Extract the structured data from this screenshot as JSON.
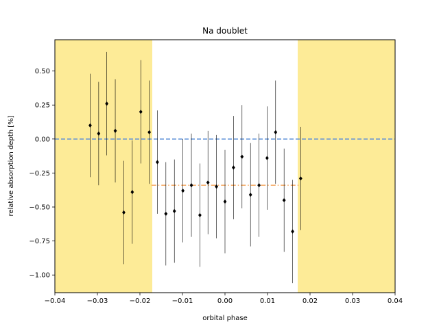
{
  "chart_data": {
    "type": "scatter",
    "title": "Na doublet",
    "xlabel": "orbital phase",
    "ylabel": "relative absorption depth [%]",
    "xlim": [
      -0.04,
      0.04
    ],
    "ylim": [
      -1.13,
      0.73
    ],
    "xticks": [
      -0.04,
      -0.03,
      -0.02,
      -0.01,
      0.0,
      0.01,
      0.02,
      0.03,
      0.04
    ],
    "xtick_labels": [
      "−0.04",
      "−0.03",
      "−0.02",
      "−0.01",
      "0.00",
      "0.01",
      "0.02",
      "0.03",
      "0.04"
    ],
    "yticks": [
      0.5,
      0.25,
      0.0,
      -0.25,
      -0.5,
      -0.75,
      -1.0
    ],
    "ytick_labels": [
      "0.50",
      "0.25",
      "0.00",
      "−0.25",
      "−0.50",
      "−0.75",
      "−1.00"
    ],
    "grid": false,
    "shaded_regions": [
      {
        "x0": -0.04,
        "x1": -0.0171,
        "color": "#fdeb97"
      },
      {
        "x0": 0.0171,
        "x1": 0.04,
        "color": "#fdeb97"
      }
    ],
    "reference_lines": [
      {
        "type": "horizontal",
        "y": 0.0,
        "x0": -0.04,
        "x1": 0.04,
        "style": "dashed",
        "color": "#5b8fd8"
      },
      {
        "type": "horizontal",
        "y": -0.34,
        "x0": -0.0173,
        "x1": 0.0173,
        "style": "dashdot",
        "color": "#f4a861"
      }
    ],
    "series": [
      {
        "marker": "diamond",
        "color": "#000000",
        "points": [
          {
            "x": -0.0317,
            "y": 0.1,
            "yerr": 0.38
          },
          {
            "x": -0.0297,
            "y": 0.04,
            "yerr": 0.38
          },
          {
            "x": -0.0278,
            "y": 0.26,
            "yerr": 0.38
          },
          {
            "x": -0.0258,
            "y": 0.06,
            "yerr": 0.38
          },
          {
            "x": -0.0238,
            "y": -0.54,
            "yerr": 0.38
          },
          {
            "x": -0.0218,
            "y": -0.39,
            "yerr": 0.38
          },
          {
            "x": -0.0198,
            "y": 0.2,
            "yerr": 0.38
          },
          {
            "x": -0.0178,
            "y": 0.05,
            "yerr": 0.38
          },
          {
            "x": -0.0159,
            "y": -0.17,
            "yerr": 0.38
          },
          {
            "x": -0.0139,
            "y": -0.55,
            "yerr": 0.38
          },
          {
            "x": -0.0119,
            "y": -0.53,
            "yerr": 0.38
          },
          {
            "x": -0.0099,
            "y": -0.38,
            "yerr": 0.38
          },
          {
            "x": -0.0079,
            "y": -0.34,
            "yerr": 0.38
          },
          {
            "x": -0.0059,
            "y": -0.56,
            "yerr": 0.38
          },
          {
            "x": -0.004,
            "y": -0.32,
            "yerr": 0.38
          },
          {
            "x": -0.002,
            "y": -0.35,
            "yerr": 0.38
          },
          {
            "x": 0.0,
            "y": -0.46,
            "yerr": 0.38
          },
          {
            "x": 0.002,
            "y": -0.21,
            "yerr": 0.38
          },
          {
            "x": 0.004,
            "y": -0.13,
            "yerr": 0.38
          },
          {
            "x": 0.006,
            "y": -0.41,
            "yerr": 0.38
          },
          {
            "x": 0.008,
            "y": -0.34,
            "yerr": 0.38
          },
          {
            "x": 0.0099,
            "y": -0.14,
            "yerr": 0.38
          },
          {
            "x": 0.0119,
            "y": 0.05,
            "yerr": 0.38
          },
          {
            "x": 0.0139,
            "y": -0.45,
            "yerr": 0.38
          },
          {
            "x": 0.0159,
            "y": -0.68,
            "yerr": 0.38
          },
          {
            "x": 0.0178,
            "y": -0.29,
            "yerr": 0.38
          }
        ]
      }
    ]
  }
}
